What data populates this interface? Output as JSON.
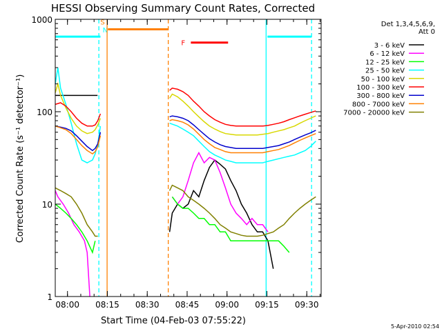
{
  "chart_data": {
    "type": "line",
    "title": "HESSI Observing Summary Count Rates, Corrected",
    "xlabel": "Start Time (04-Feb-03 07:55:22)",
    "ylabel": "Corrected Count Rate (s⁻¹ detector⁻¹)",
    "timestamp": "5-Apr-2010 02:54",
    "x_unit": "minutes after 07:55:22",
    "xlim": [
      0,
      100
    ],
    "ylim": [
      1,
      1000
    ],
    "yscale": "log",
    "x_ticks": [
      {
        "t": 4.6,
        "label": "08:00"
      },
      {
        "t": 19.6,
        "label": "08:15"
      },
      {
        "t": 34.6,
        "label": "08:30"
      },
      {
        "t": 49.6,
        "label": "08:45"
      },
      {
        "t": 64.6,
        "label": "09:00"
      },
      {
        "t": 79.6,
        "label": "09:15"
      },
      {
        "t": 94.6,
        "label": "09:30"
      }
    ],
    "y_ticks": [
      {
        "v": 1,
        "label": "1"
      },
      {
        "v": 10,
        "label": "10"
      },
      {
        "v": 100,
        "label": "100"
      },
      {
        "v": 1000,
        "label": "1000"
      }
    ],
    "legend_header": [
      "Det 1,3,4,5,6,9,",
      "Att 0"
    ],
    "legend_position": "right",
    "series": [
      {
        "name": "3 - 6 keV",
        "color": "#000000",
        "segments": [
          {
            "x": [
              0,
              15.9
            ],
            "y": [
              150,
              150
            ]
          },
          {
            "x": [
              43,
              44,
              46,
              48,
              50,
              52,
              54,
              56,
              58,
              60,
              62,
              64,
              66,
              68,
              70,
              72,
              74,
              76,
              78,
              80,
              82
            ],
            "y": [
              5,
              8,
              10,
              9,
              10,
              14,
              12,
              18,
              25,
              30,
              27,
              24,
              18,
              14,
              10,
              8,
              6,
              5,
              5,
              4,
              2
            ]
          }
        ]
      },
      {
        "name": "6 - 12 keV",
        "color": "#ff00ff",
        "segments": [
          {
            "x": [
              0,
              1,
              3,
              5,
              7,
              9,
              11,
              12,
              13
            ],
            "y": [
              14,
              12,
              10,
              8,
              6,
              5,
              4,
              3,
              1
            ]
          },
          {
            "x": [
              44,
              46,
              48,
              50,
              52,
              54,
              56,
              58,
              60,
              62,
              64,
              66,
              68,
              70,
              72,
              74,
              76,
              78,
              80
            ],
            "y": [
              12,
              10,
              12,
              18,
              28,
              36,
              28,
              32,
              30,
              22,
              15,
              10,
              8,
              7,
              6,
              7,
              6,
              6,
              5
            ]
          }
        ]
      },
      {
        "name": "12 - 25 keV",
        "color": "#00ff00",
        "segments": [
          {
            "x": [
              0,
              2,
              4,
              6,
              8,
              10,
              12,
              14,
              15
            ],
            "y": [
              10,
              9,
              8,
              7,
              6,
              5,
              4,
              3,
              4
            ]
          },
          {
            "x": [
              44,
              46,
              48,
              50,
              52,
              54,
              56,
              58,
              60,
              62,
              64,
              66,
              68,
              70,
              72,
              74,
              76,
              78,
              80,
              82,
              84,
              86,
              88
            ],
            "y": [
              12,
              10,
              9,
              9,
              8,
              7,
              7,
              6,
              6,
              5,
              5,
              4,
              4,
              4,
              4,
              4,
              4,
              4,
              4,
              4,
              4,
              3.5,
              3
            ]
          }
        ]
      },
      {
        "name": "25 - 50 keV",
        "color": "#00ffff",
        "segments": [
          {
            "x": [
              0,
              1,
              2,
              4,
              6,
              8,
              10,
              12,
              14,
              15,
              16,
              17
            ],
            "y": [
              200,
              300,
              180,
              120,
              75,
              45,
              30,
              28,
              30,
              35,
              45,
              70
            ]
          },
          {
            "x": [
              43,
              46,
              48,
              50,
              52,
              54,
              56,
              58,
              60,
              62,
              64,
              66,
              68,
              70,
              72,
              74,
              76,
              78,
              80,
              82,
              84,
              86,
              88,
              90,
              92,
              94,
              96,
              98
            ],
            "y": [
              75,
              70,
              65,
              60,
              55,
              48,
              42,
              37,
              34,
              32,
              30,
              29,
              28,
              28,
              28,
              28,
              28,
              28,
              29,
              30,
              31,
              32,
              33,
              34,
              36,
              38,
              42,
              48
            ]
          }
        ]
      },
      {
        "name": "50 - 100 keV",
        "color": "#d8d800",
        "segments": [
          {
            "x": [
              0,
              1,
              2,
              4,
              6,
              8,
              10,
              12,
              14,
              15,
              16,
              17
            ],
            "y": [
              160,
              200,
              150,
              110,
              85,
              70,
              62,
              58,
              60,
              64,
              72,
              85
            ]
          },
          {
            "x": [
              43,
              44,
              46,
              48,
              50,
              52,
              54,
              56,
              58,
              60,
              62,
              64,
              66,
              68,
              70,
              72,
              74,
              76,
              78,
              80,
              82,
              84,
              86,
              88,
              90,
              92,
              94,
              96,
              98
            ],
            "y": [
              140,
              155,
              145,
              130,
              115,
              100,
              88,
              78,
              70,
              65,
              61,
              58,
              57,
              56,
              56,
              56,
              56,
              56,
              57,
              58,
              60,
              62,
              64,
              67,
              70,
              75,
              80,
              85,
              90
            ]
          }
        ]
      },
      {
        "name": "100 - 300 keV",
        "color": "#ff0000",
        "segments": [
          {
            "x": [
              0,
              2,
              4,
              6,
              8,
              10,
              12,
              14,
              15,
              16,
              17
            ],
            "y": [
              120,
              125,
              115,
              100,
              85,
              75,
              70,
              70,
              72,
              80,
              95
            ]
          },
          {
            "x": [
              43,
              44,
              46,
              48,
              50,
              52,
              54,
              56,
              58,
              60,
              62,
              64,
              66,
              68,
              70,
              72,
              74,
              76,
              78,
              80,
              82,
              84,
              86,
              88,
              90,
              92,
              94,
              96,
              98
            ],
            "y": [
              170,
              180,
              175,
              165,
              150,
              130,
              115,
              100,
              90,
              82,
              77,
              73,
              71,
              70,
              70,
              70,
              70,
              70,
              70,
              71,
              73,
              75,
              78,
              82,
              86,
              90,
              94,
              98,
              102
            ]
          }
        ]
      },
      {
        "name": "300 - 800 keV",
        "color": "#0000cc",
        "segments": [
          {
            "x": [
              0,
              2,
              4,
              6,
              8,
              10,
              12,
              14,
              15,
              16,
              17
            ],
            "y": [
              70,
              68,
              66,
              62,
              55,
              48,
              42,
              38,
              40,
              45,
              60
            ]
          },
          {
            "x": [
              43,
              44,
              46,
              48,
              50,
              52,
              54,
              56,
              58,
              60,
              62,
              64,
              66,
              68,
              70,
              72,
              74,
              76,
              78,
              80,
              82,
              84,
              86,
              88,
              90,
              92,
              94,
              96,
              98
            ],
            "y": [
              88,
              90,
              88,
              85,
              80,
              72,
              64,
              57,
              51,
              47,
              44,
              42,
              41,
              40,
              40,
              40,
              40,
              40,
              40,
              41,
              42,
              43,
              45,
              47,
              50,
              53,
              56,
              59,
              63
            ]
          }
        ]
      },
      {
        "name": "800 - 7000 keV",
        "color": "#ff8000",
        "segments": [
          {
            "x": [
              0,
              2,
              4,
              6,
              8,
              10,
              12,
              14,
              15,
              16,
              17
            ],
            "y": [
              70,
              67,
              64,
              58,
              50,
              43,
              38,
              35,
              37,
              42,
              55
            ]
          },
          {
            "x": [
              43,
              44,
              46,
              48,
              50,
              52,
              54,
              56,
              58,
              60,
              62,
              64,
              66,
              68,
              70,
              72,
              74,
              76,
              78,
              80,
              82,
              84,
              86,
              88,
              90,
              92,
              94,
              96,
              98
            ],
            "y": [
              80,
              82,
              80,
              77,
              72,
              65,
              57,
              50,
              45,
              41,
              39,
              37,
              36,
              36,
              36,
              36,
              36,
              36,
              36,
              37,
              38,
              39,
              41,
              43,
              46,
              49,
              52,
              55,
              58
            ]
          }
        ]
      },
      {
        "name": "7000 - 20000 keV",
        "color": "#808000",
        "segments": [
          {
            "x": [
              0,
              2,
              4,
              6,
              8,
              10,
              12,
              14,
              15,
              16
            ],
            "y": [
              15,
              14,
              13,
              12,
              10,
              8,
              6,
              5,
              4.5,
              4.5
            ]
          },
          {
            "x": [
              43,
              44,
              46,
              48,
              50,
              52,
              54,
              56,
              58,
              60,
              62,
              64,
              66,
              68,
              70,
              72,
              74,
              76,
              78,
              80,
              82,
              84,
              86,
              88,
              90,
              92,
              94,
              96,
              98
            ],
            "y": [
              14,
              16,
              15,
              14,
              12,
              11,
              10,
              9,
              8,
              7,
              6,
              5.5,
              5,
              4.8,
              4.6,
              4.5,
              4.5,
              4.5,
              4.6,
              4.8,
              5,
              5.5,
              6,
              7,
              8,
              9,
              10,
              11,
              12
            ]
          }
        ]
      }
    ],
    "vertical_markers": [
      {
        "t": 16.4,
        "color": "#00ffff",
        "style": "dashed"
      },
      {
        "t": 19.5,
        "color": "#ff8000",
        "style": "solid"
      },
      {
        "t": 42.5,
        "color": "#ff8000",
        "style": "dashed"
      },
      {
        "t": 79.3,
        "color": "#00ffff",
        "style": "solid"
      },
      {
        "t": 96.4,
        "color": "#00ffff",
        "style": "dashed"
      }
    ],
    "flag_bars": [
      {
        "t0": 0,
        "t1": 17.0,
        "y": 650,
        "color": "#00ffff",
        "label": ""
      },
      {
        "t0": 19.8,
        "t1": 42.5,
        "y": 780,
        "color": "#ff8000",
        "label": ""
      },
      {
        "t0": 51.0,
        "t1": 65.0,
        "y": 560,
        "color": "#ff0000",
        "label": "F"
      },
      {
        "t0": 79.8,
        "t1": 96.4,
        "y": 650,
        "color": "#00ffff",
        "label": ""
      }
    ],
    "markers_text": [
      {
        "t": 17.8,
        "y": 880,
        "text": "S",
        "color": "#ff8000"
      },
      {
        "t": 18.8,
        "y": 720,
        "text": "N",
        "color": "#00ffff"
      }
    ]
  }
}
